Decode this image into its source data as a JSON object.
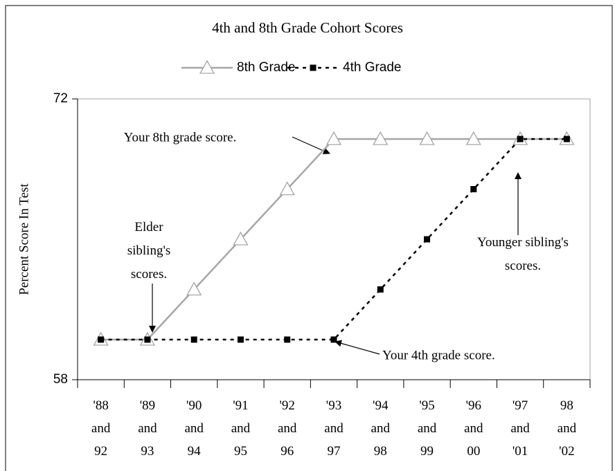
{
  "chart_data": {
    "type": "line",
    "title": "4th and 8th Grade Cohort Scores",
    "y_label": "Percent Score In Test",
    "categories": [
      "'88\nand\n92",
      "'89\nand\n93",
      "'90\nand\n94",
      "'91\nand\n95",
      "'92\nand\n96",
      "'93\nand\n97",
      "'94\nand\n98",
      "'95\nand\n99",
      "'96\nand\n00",
      "'97\nand\n'01",
      "98\nand\n'02"
    ],
    "series": [
      {
        "name": "8th Grade",
        "color": "#a6a6a6",
        "values": [
          60,
          60,
          62.5,
          65,
          67.5,
          70,
          70,
          70,
          70,
          70,
          70
        ]
      },
      {
        "name": "4th Grade",
        "color": "#000000",
        "values": [
          60,
          60,
          60,
          60,
          60,
          60,
          62.5,
          65,
          67.5,
          70,
          70
        ]
      }
    ],
    "ylim": [
      58,
      72
    ],
    "yticks": [
      58,
      72
    ],
    "legend": "top",
    "annotations": [
      "Your 8th grade score.",
      "Elder\nsibling's\nscores.",
      "Younger sibling's\nscores.",
      "Your 4th grade score."
    ]
  }
}
